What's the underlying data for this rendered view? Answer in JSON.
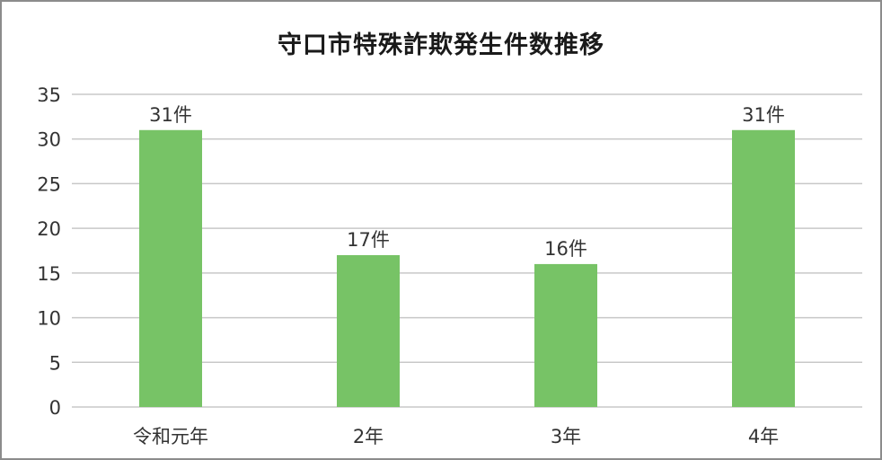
{
  "chart_data": {
    "type": "bar",
    "title": "守口市特殊詐欺発生件数推移",
    "categories": [
      "令和元年",
      "2年",
      "3年",
      "4年"
    ],
    "values": [
      31,
      17,
      16,
      31
    ],
    "data_labels": [
      "31件",
      "17件",
      "16件",
      "31件"
    ],
    "xlabel": "",
    "ylabel": "",
    "ylim": [
      0,
      35
    ],
    "yticks": [
      0,
      5,
      10,
      15,
      20,
      25,
      30,
      35
    ],
    "grid": true,
    "legend": "none",
    "bar_color": "#77c366",
    "grid_color": "#c8c8c8"
  }
}
